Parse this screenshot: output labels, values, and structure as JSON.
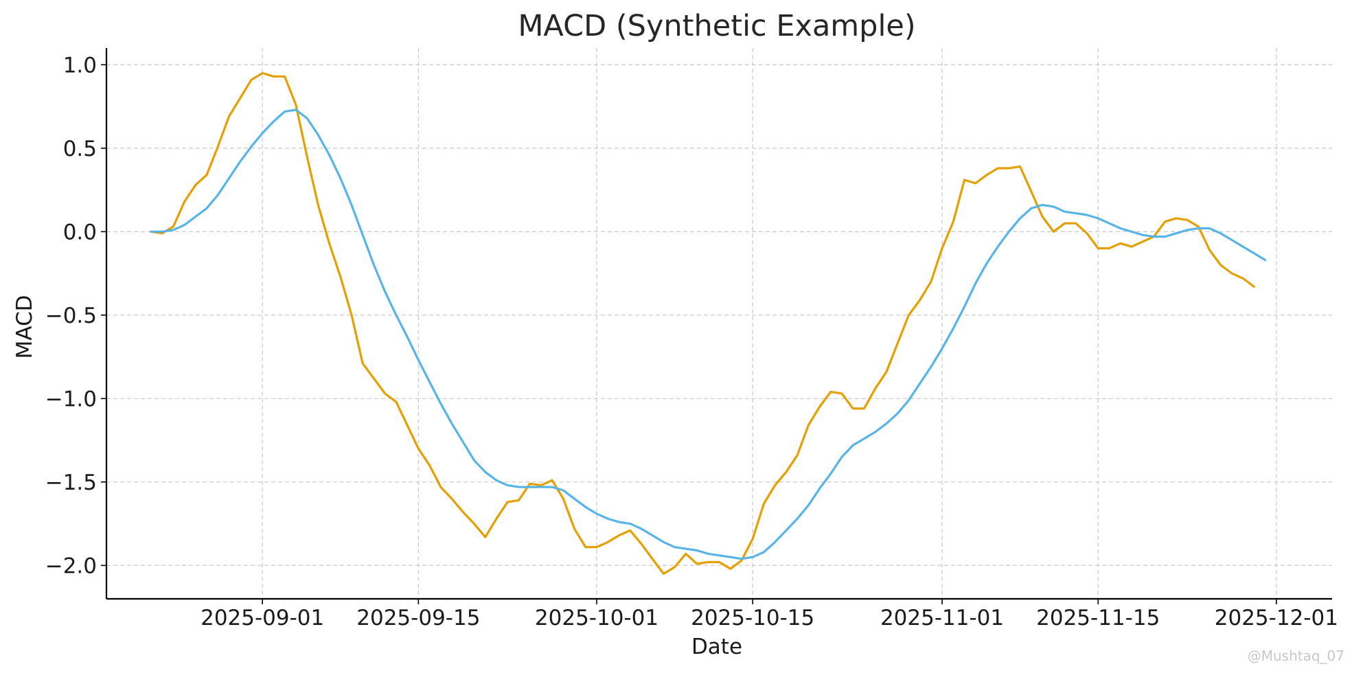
{
  "chart_data": {
    "type": "line",
    "title": "MACD (Synthetic Example)",
    "xlabel": "Date",
    "ylabel": "MACD",
    "x_start": "2025-08-22",
    "x_step_days": 1,
    "xlim": [
      "2025-08-18",
      "2025-12-06"
    ],
    "ylim": [
      -2.2,
      1.1
    ],
    "x_ticks": [
      "2025-09-01",
      "2025-09-15",
      "2025-10-01",
      "2025-10-15",
      "2025-11-01",
      "2025-11-15",
      "2025-12-01"
    ],
    "y_ticks": [
      1.0,
      0.5,
      0.0,
      -0.5,
      -1.0,
      -1.5,
      -2.0
    ],
    "y_tick_labels": [
      "1.0",
      "0.5",
      "0.0",
      "−0.5",
      "−1.0",
      "−1.5",
      "−2.0"
    ],
    "grid": true,
    "series": [
      {
        "color": "#E69F00",
        "values": [
          0.0,
          -0.01,
          0.03,
          0.18,
          0.28,
          0.34,
          0.51,
          0.69,
          0.8,
          0.91,
          0.95,
          0.93,
          0.93,
          0.76,
          0.45,
          0.16,
          -0.07,
          -0.27,
          -0.5,
          -0.79,
          -0.88,
          -0.97,
          -1.02,
          -1.16,
          -1.3,
          -1.4,
          -1.53,
          -1.6,
          -1.68,
          -1.75,
          -1.83,
          -1.72,
          -1.62,
          -1.61,
          -1.51,
          -1.52,
          -1.49,
          -1.6,
          -1.78,
          -1.89,
          -1.89,
          -1.86,
          -1.82,
          -1.79,
          -1.87,
          -1.96,
          -2.05,
          -2.01,
          -1.93,
          -1.99,
          -1.98,
          -1.98,
          -2.02,
          -1.97,
          -1.84,
          -1.63,
          -1.52,
          -1.44,
          -1.34,
          -1.16,
          -1.05,
          -0.96,
          -0.97,
          -1.06,
          -1.06,
          -0.94,
          -0.84,
          -0.67,
          -0.5,
          -0.41,
          -0.3,
          -0.1,
          0.06,
          0.31,
          0.29,
          0.34,
          0.38,
          0.38,
          0.39,
          0.24,
          0.09,
          0.0,
          0.05,
          0.05,
          -0.01,
          -0.1,
          -0.1,
          -0.07,
          -0.09,
          -0.06,
          -0.03,
          0.06,
          0.08,
          0.07,
          0.03,
          -0.11,
          -0.2,
          -0.25,
          -0.28,
          -0.33
        ]
      },
      {
        "color": "#56B4E9",
        "values": [
          0.0,
          0.0,
          0.01,
          0.04,
          0.09,
          0.14,
          0.22,
          0.32,
          0.42,
          0.51,
          0.59,
          0.66,
          0.72,
          0.73,
          0.68,
          0.58,
          0.46,
          0.32,
          0.16,
          -0.02,
          -0.2,
          -0.36,
          -0.5,
          -0.63,
          -0.77,
          -0.9,
          -1.03,
          -1.15,
          -1.26,
          -1.37,
          -1.44,
          -1.49,
          -1.52,
          -1.53,
          -1.53,
          -1.53,
          -1.53,
          -1.55,
          -1.6,
          -1.65,
          -1.69,
          -1.72,
          -1.74,
          -1.75,
          -1.78,
          -1.82,
          -1.86,
          -1.89,
          -1.9,
          -1.91,
          -1.93,
          -1.94,
          -1.95,
          -1.96,
          -1.95,
          -1.92,
          -1.86,
          -1.79,
          -1.72,
          -1.64,
          -1.54,
          -1.45,
          -1.35,
          -1.28,
          -1.24,
          -1.2,
          -1.15,
          -1.09,
          -1.01,
          -0.91,
          -0.81,
          -0.7,
          -0.58,
          -0.45,
          -0.31,
          -0.19,
          -0.09,
          0.0,
          0.08,
          0.14,
          0.16,
          0.15,
          0.12,
          0.11,
          0.1,
          0.08,
          0.05,
          0.02,
          0.0,
          -0.02,
          -0.03,
          -0.03,
          -0.01,
          0.01,
          0.02,
          0.02,
          -0.01,
          -0.05,
          -0.09,
          -0.13,
          -0.17
        ]
      }
    ]
  },
  "watermark": "@Mushtaq_07"
}
